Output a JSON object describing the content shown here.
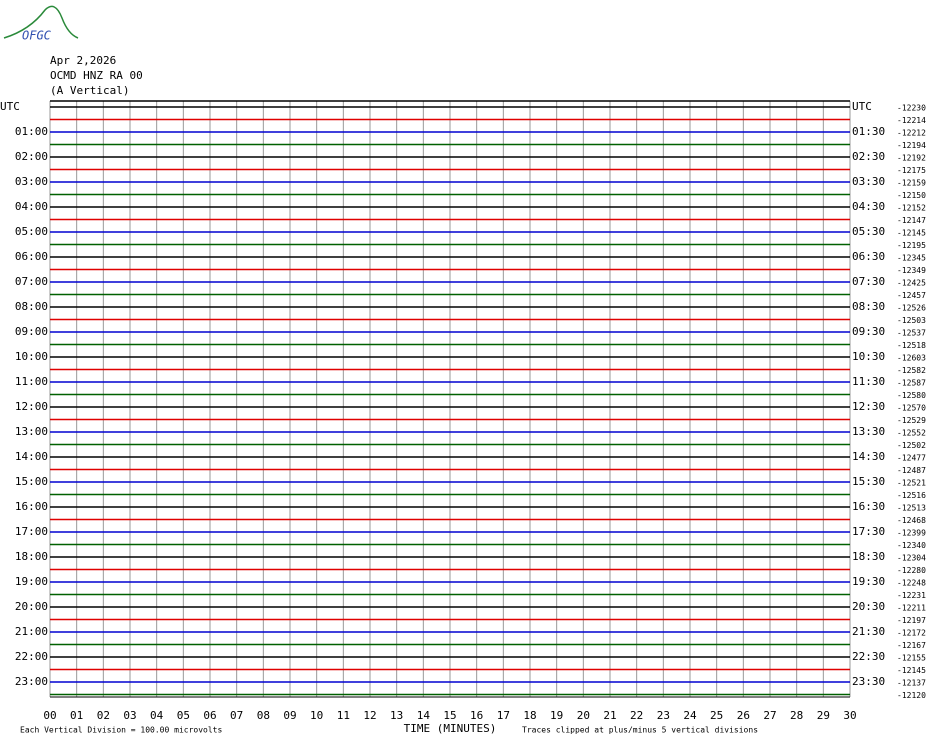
{
  "logo": "OFGC",
  "header": {
    "date": "Apr 2,2026",
    "station": "OCMD HNZ RA 00",
    "component": "(A Vertical)"
  },
  "chart_data": {
    "type": "helicorder",
    "left_labels": [
      "UTC",
      "01:00",
      "02:00",
      "03:00",
      "04:00",
      "05:00",
      "06:00",
      "07:00",
      "08:00",
      "09:00",
      "10:00",
      "11:00",
      "12:00",
      "13:00",
      "14:00",
      "15:00",
      "16:00",
      "17:00",
      "18:00",
      "19:00",
      "20:00",
      "21:00",
      "22:00",
      "23:00"
    ],
    "right_labels": [
      "UTC",
      "01:30",
      "02:30",
      "03:30",
      "04:30",
      "05:30",
      "06:30",
      "07:30",
      "08:30",
      "09:30",
      "10:30",
      "11:30",
      "12:30",
      "13:30",
      "14:30",
      "15:30",
      "16:30",
      "17:30",
      "18:30",
      "19:30",
      "20:30",
      "21:30",
      "22:30",
      "23:30"
    ],
    "offsets": [
      -12230,
      -12214,
      -12212,
      -12194,
      -12192,
      -12175,
      -12159,
      -12150,
      -12152,
      -12147,
      -12145,
      -12195,
      -12345,
      -12349,
      -12425,
      -12457,
      -12526,
      -12503,
      -12537,
      -12518,
      -12603,
      -12582,
      -12587,
      -12580,
      -12570,
      -12529,
      -12552,
      -12502,
      -12477,
      -12487,
      -12521,
      -12516,
      -12513,
      -12468,
      -12399,
      -12340,
      -12304,
      -12280,
      -12248,
      -12231,
      -12211,
      -12197,
      -12172,
      -12167,
      -12155,
      -12145,
      -12137,
      -12120
    ],
    "colors": [
      "#000000",
      "#e00000",
      "#0000d0",
      "#006000"
    ],
    "xlim": [
      0,
      30
    ],
    "xticks": [
      {
        "value": 0,
        "label": "00"
      },
      {
        "value": 1,
        "label": "01"
      },
      {
        "value": 2,
        "label": "02"
      },
      {
        "value": 3,
        "label": "03"
      },
      {
        "value": 4,
        "label": "04"
      },
      {
        "value": 5,
        "label": "05"
      },
      {
        "value": 6,
        "label": "06"
      },
      {
        "value": 7,
        "label": "07"
      },
      {
        "value": 8,
        "label": "08"
      },
      {
        "value": 9,
        "label": "09"
      },
      10,
      11,
      12,
      13,
      14,
      15,
      16,
      17,
      18,
      19,
      20,
      21,
      22,
      23,
      24,
      25,
      26,
      27,
      28,
      29,
      30
    ],
    "xlabel": "TIME (MINUTES)",
    "scale_note": "Each Vertical Division =  100.00 microvolts",
    "clip_note": "Traces clipped at plus/minus 5 vertical divisions"
  }
}
